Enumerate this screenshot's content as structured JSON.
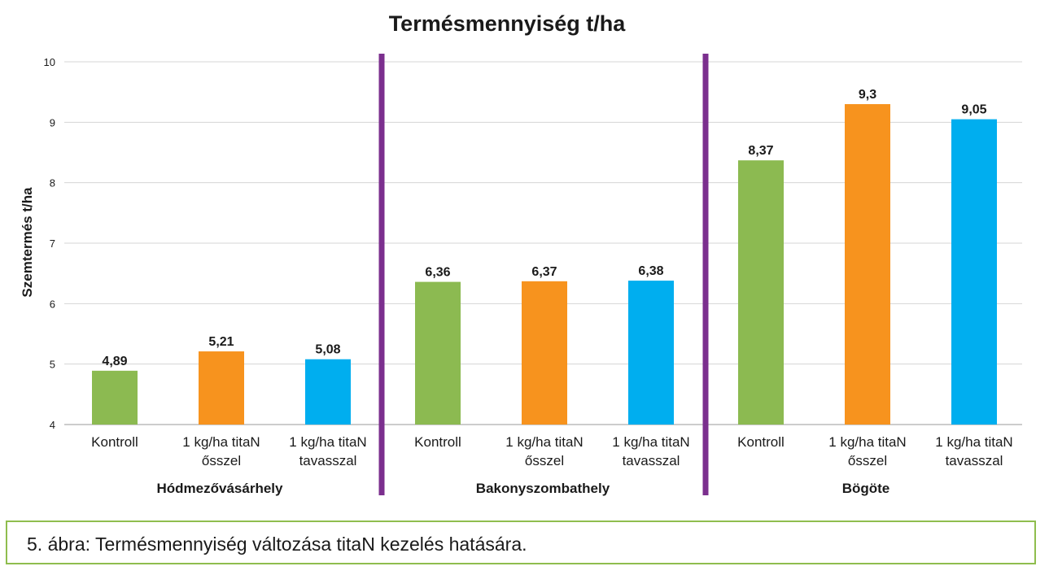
{
  "chart_data": {
    "type": "bar",
    "title": "Termésmennyiség t/ha",
    "ylabel": "Szemtermés t/ha",
    "ylim": [
      4,
      10
    ],
    "yticks": [
      4,
      5,
      6,
      7,
      8,
      9,
      10
    ],
    "grid": true,
    "groups": [
      {
        "name": "Hódmezővásárhely",
        "bars": [
          {
            "category": "Kontroll",
            "value": 4.89,
            "label": "4,89",
            "color": "#8cba51"
          },
          {
            "category": "1 kg/ha titaN\nősszel",
            "value": 5.21,
            "label": "5,21",
            "color": "#f7931e"
          },
          {
            "category": "1 kg/ha titaN\ntavasszal",
            "value": 5.08,
            "label": "5,08",
            "color": "#00aeef"
          }
        ]
      },
      {
        "name": "Bakonyszombathely",
        "bars": [
          {
            "category": "Kontroll",
            "value": 6.36,
            "label": "6,36",
            "color": "#8cba51"
          },
          {
            "category": "1 kg/ha titaN\nősszel",
            "value": 6.37,
            "label": "6,37",
            "color": "#f7931e"
          },
          {
            "category": "1 kg/ha titaN\ntavasszal",
            "value": 6.38,
            "label": "6,38",
            "color": "#00aeef"
          }
        ]
      },
      {
        "name": "Bögöte",
        "bars": [
          {
            "category": "Kontroll",
            "value": 8.37,
            "label": "8,37",
            "color": "#8cba51"
          },
          {
            "category": "1 kg/ha titaN\nősszel",
            "value": 9.3,
            "label": "9,3",
            "color": "#f7931e"
          },
          {
            "category": "1 kg/ha titaN\ntavasszal",
            "value": 9.05,
            "label": "9,05",
            "color": "#00aeef"
          }
        ]
      }
    ],
    "separator_color": "#7b2f8e"
  },
  "caption": "5. ábra: Termésmennyiség változása titaN kezelés hatására."
}
